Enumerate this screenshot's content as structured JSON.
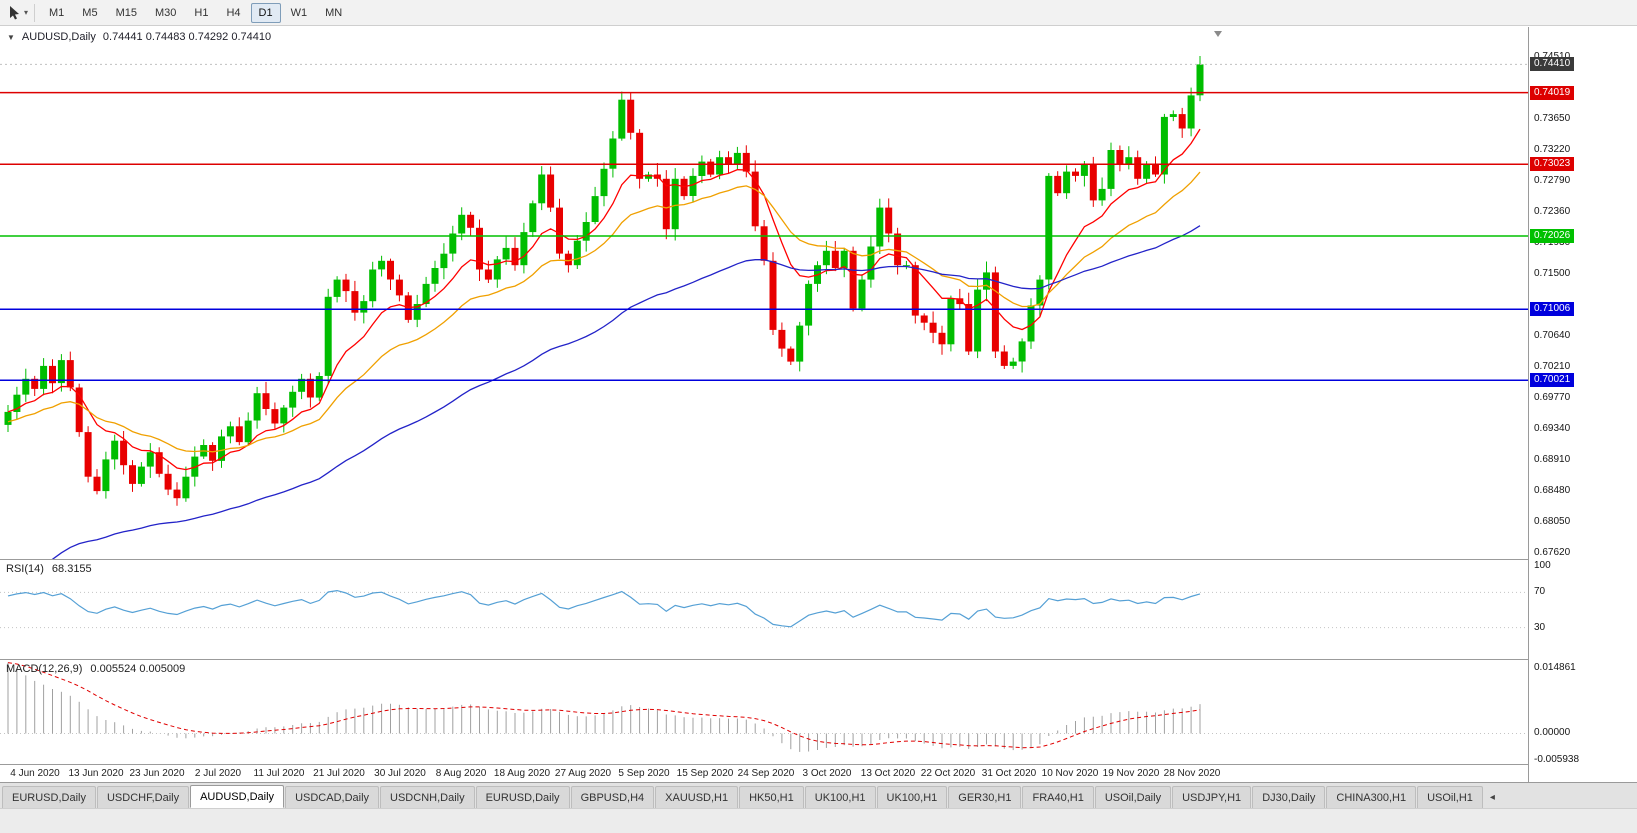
{
  "icons": {
    "toolbar_dropdown": "▾",
    "chart_collapse": "▼",
    "tab_scroll_left": "◂"
  },
  "toolbar": {
    "timeframes": [
      "M1",
      "M5",
      "M15",
      "M30",
      "H1",
      "H4",
      "D1",
      "W1",
      "MN"
    ],
    "active_timeframe": "D1"
  },
  "chart": {
    "symbol_title": "AUDUSD,Daily",
    "ohlc_text": "0.74441  0.74483  0.74292  0.74410",
    "current_price": "0.74410",
    "current_price_box_color": "#3a3a3a",
    "axis_ticks": [
      "0.74510",
      "0.73650",
      "0.73220",
      "0.72790",
      "0.72360",
      "0.71930",
      "0.71500",
      "0.70640",
      "0.70210",
      "0.69770",
      "0.69340",
      "0.68910",
      "0.68480",
      "0.68050",
      "0.67620"
    ],
    "levels": [
      {
        "price": "0.74019",
        "color": "#dd0000"
      },
      {
        "price": "0.73023",
        "color": "#dd0000"
      },
      {
        "price": "0.72026",
        "color": "#00c000"
      },
      {
        "price": "0.71006",
        "color": "#0000dd"
      },
      {
        "price": "0.70021",
        "color": "#0000dd"
      }
    ]
  },
  "chart_data": {
    "type": "candlestick",
    "symbol": "AUDUSD",
    "timeframe": "Daily",
    "first_open": 0.694,
    "closes": [
      0.6958,
      0.6982,
      0.7004,
      0.699,
      0.7022,
      0.6998,
      0.703,
      0.6992,
      0.693,
      0.6868,
      0.6848,
      0.6892,
      0.6918,
      0.6884,
      0.6858,
      0.6882,
      0.6902,
      0.6872,
      0.685,
      0.6838,
      0.6868,
      0.6896,
      0.6912,
      0.689,
      0.6924,
      0.6938,
      0.6916,
      0.6946,
      0.6984,
      0.6962,
      0.6942,
      0.6964,
      0.6986,
      0.7004,
      0.6978,
      0.7008,
      0.7118,
      0.7142,
      0.7126,
      0.7096,
      0.7112,
      0.7156,
      0.7168,
      0.7142,
      0.712,
      0.7086,
      0.7108,
      0.7136,
      0.7158,
      0.7178,
      0.7206,
      0.7232,
      0.7214,
      0.7156,
      0.7142,
      0.717,
      0.7186,
      0.7162,
      0.7208,
      0.7248,
      0.7288,
      0.7242,
      0.7178,
      0.7162,
      0.7196,
      0.7222,
      0.7258,
      0.7296,
      0.7338,
      0.7392,
      0.7346,
      0.7282,
      0.7288,
      0.7282,
      0.7212,
      0.7282,
      0.7258,
      0.7286,
      0.7306,
      0.7288,
      0.7312,
      0.7302,
      0.7318,
      0.7292,
      0.7216,
      0.7168,
      0.7072,
      0.7046,
      0.7028,
      0.7078,
      0.7136,
      0.7162,
      0.7182,
      0.7158,
      0.7182,
      0.7102,
      0.7142,
      0.7188,
      0.7242,
      0.7206,
      0.7162,
      0.7162,
      0.7092,
      0.7082,
      0.7068,
      0.7052,
      0.7116,
      0.7108,
      0.7042,
      0.7128,
      0.7152,
      0.7042,
      0.7022,
      0.7028,
      0.7056,
      0.7106,
      0.7142,
      0.7286,
      0.7262,
      0.7292,
      0.7286,
      0.7302,
      0.7252,
      0.7268,
      0.7322,
      0.7302,
      0.7312,
      0.7282,
      0.7302,
      0.7288,
      0.7368,
      0.7372,
      0.7352,
      0.7398,
      0.7441
    ],
    "x_dates": [
      "4 Jun 2020",
      "13 Jun 2020",
      "23 Jun 2020",
      "2 Jul 2020",
      "11 Jul 2020",
      "21 Jul 2020",
      "30 Jul 2020",
      "8 Aug 2020",
      "18 Aug 2020",
      "27 Aug 2020",
      "5 Sep 2020",
      "15 Sep 2020",
      "24 Sep 2020",
      "3 Oct 2020",
      "13 Oct 2020",
      "22 Oct 2020",
      "31 Oct 2020",
      "10 Nov 2020",
      "19 Nov 2020",
      "28 Nov 2020"
    ],
    "y_axis_top_price": 0.7468,
    "y_axis_bottom_price": 0.6755,
    "moving_averages": [
      {
        "name": "ma-fast",
        "period": 10,
        "color": "#ff0000"
      },
      {
        "name": "ma-medium",
        "period": 22,
        "color": "#f0a000"
      },
      {
        "name": "ma-slow",
        "period": 60,
        "color": "#2323c8"
      }
    ],
    "colors": {
      "bull": "#00bd00",
      "bear": "#e80000"
    }
  },
  "indicators": {
    "rsi": {
      "name": "RSI(14)",
      "value": "68.3155",
      "scale": [
        "100",
        "70",
        "30"
      ],
      "level_lines": [
        70,
        30
      ],
      "line_color": "#55a0d5"
    },
    "macd": {
      "name": "MACD(12,26,9)",
      "values": "0.005524 0.005009",
      "scale": [
        "0.014861",
        "0.00000",
        "-0.005938"
      ],
      "scale_max": 0.014861,
      "scale_min": -0.005938,
      "histogram_color": "#a0a0a0",
      "signal_color": "#e00000"
    }
  },
  "tab_bar": {
    "active_index": 2,
    "tabs": [
      "EURUSD,Daily",
      "USDCHF,Daily",
      "AUDUSD,Daily",
      "USDCAD,Daily",
      "USDCNH,Daily",
      "EURUSD,Daily",
      "GBPUSD,H4",
      "XAUUSD,H1",
      "HK50,H1",
      "UK100,H1",
      "UK100,H1",
      "GER30,H1",
      "FRA40,H1",
      "USOil,Daily",
      "USDJPY,H1",
      "DJ30,Daily",
      "CHINA300,H1",
      "USOil,H1"
    ]
  }
}
